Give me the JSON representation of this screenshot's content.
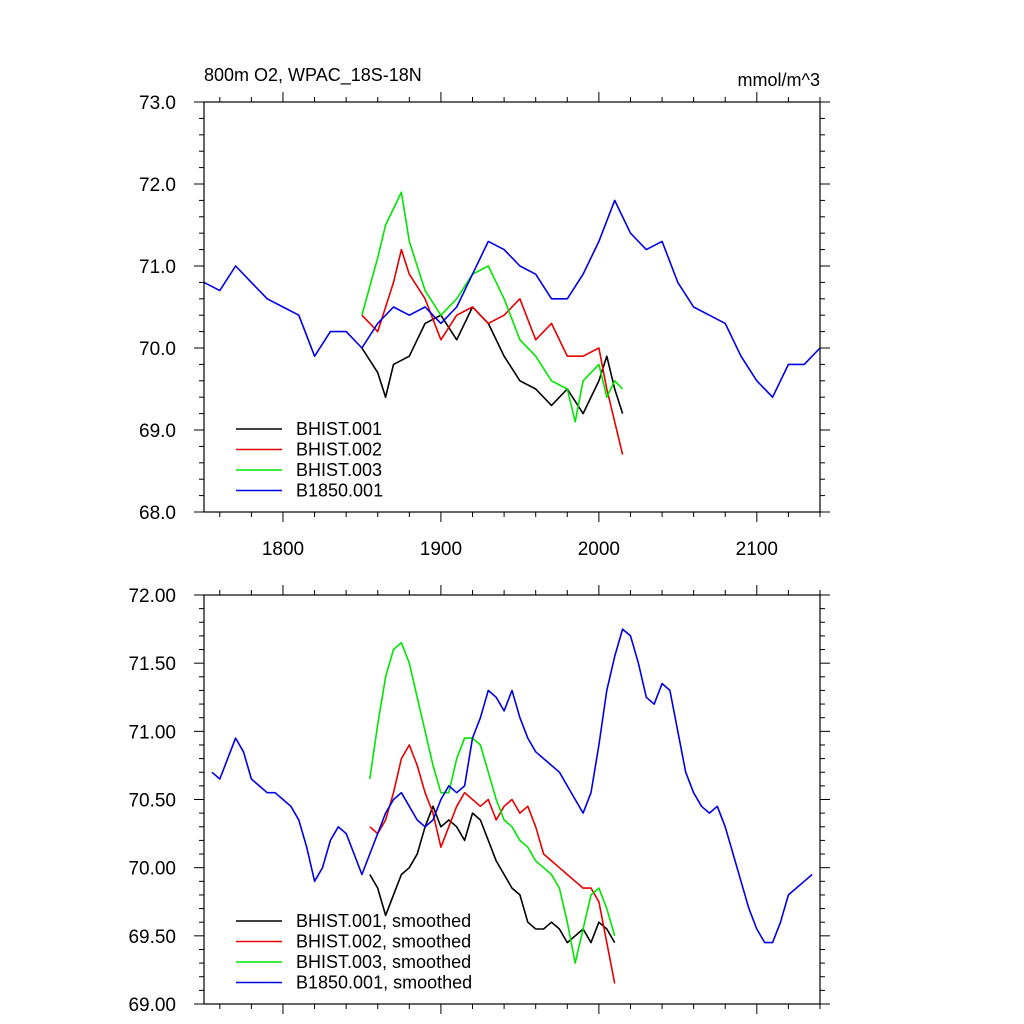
{
  "colors": {
    "BHIST.001": "#000000",
    "BHIST.002": "#e60000",
    "BHIST.003": "#00e600",
    "B1850.001": "#0000e6"
  },
  "chart_data": [
    {
      "type": "line",
      "title": "800m O2, WPAC_18S-18N",
      "units": "mmol/m^3",
      "xlim": [
        1750,
        2140
      ],
      "ylim": [
        68.0,
        73.0
      ],
      "xticks": [
        "1800",
        "1900",
        "2000",
        "2100"
      ],
      "yticks": [
        "68.0",
        "69.0",
        "70.0",
        "71.0",
        "72.0",
        "73.0"
      ],
      "legend": [
        "BHIST.001",
        "BHIST.002",
        "BHIST.003",
        "B1850.001"
      ],
      "legend_position": "bottom-left",
      "series": [
        {
          "name": "BHIST.001",
          "x": [
            1850,
            1860,
            1865,
            1870,
            1880,
            1890,
            1900,
            1910,
            1920,
            1930,
            1940,
            1950,
            1960,
            1970,
            1980,
            1990,
            2000,
            2005,
            2010,
            2015
          ],
          "values": [
            70.0,
            69.7,
            69.4,
            69.8,
            69.9,
            70.3,
            70.4,
            70.1,
            70.5,
            70.3,
            69.9,
            69.6,
            69.5,
            69.3,
            69.5,
            69.2,
            69.6,
            69.9,
            69.5,
            69.2
          ]
        },
        {
          "name": "BHIST.002",
          "x": [
            1850,
            1860,
            1870,
            1875,
            1880,
            1890,
            1900,
            1910,
            1920,
            1930,
            1940,
            1950,
            1960,
            1970,
            1980,
            1990,
            2000,
            2005,
            2010,
            2015
          ],
          "values": [
            70.4,
            70.2,
            70.8,
            71.2,
            70.9,
            70.6,
            70.1,
            70.4,
            70.5,
            70.3,
            70.4,
            70.6,
            70.1,
            70.3,
            69.9,
            69.9,
            70.0,
            69.5,
            69.1,
            68.7
          ]
        },
        {
          "name": "BHIST.003",
          "x": [
            1850,
            1860,
            1865,
            1870,
            1875,
            1880,
            1890,
            1900,
            1910,
            1920,
            1930,
            1940,
            1950,
            1960,
            1970,
            1980,
            1985,
            1990,
            2000,
            2005,
            2010,
            2015
          ],
          "values": [
            70.4,
            71.1,
            71.5,
            71.7,
            71.9,
            71.3,
            70.7,
            70.4,
            70.6,
            70.9,
            71.0,
            70.6,
            70.1,
            69.9,
            69.6,
            69.5,
            69.1,
            69.6,
            69.8,
            69.4,
            69.6,
            69.5
          ]
        },
        {
          "name": "B1850.001",
          "x": [
            1750,
            1760,
            1770,
            1780,
            1790,
            1800,
            1810,
            1820,
            1830,
            1840,
            1850,
            1860,
            1870,
            1880,
            1890,
            1900,
            1910,
            1920,
            1930,
            1940,
            1950,
            1960,
            1970,
            1980,
            1990,
            2000,
            2010,
            2020,
            2030,
            2040,
            2050,
            2060,
            2070,
            2080,
            2090,
            2100,
            2110,
            2120,
            2130,
            2140
          ],
          "values": [
            70.8,
            70.7,
            71.0,
            70.8,
            70.6,
            70.5,
            70.4,
            69.9,
            70.2,
            70.2,
            70.0,
            70.3,
            70.5,
            70.4,
            70.5,
            70.3,
            70.5,
            70.9,
            71.3,
            71.2,
            71.0,
            70.9,
            70.6,
            70.6,
            70.9,
            71.3,
            71.8,
            71.4,
            71.2,
            71.3,
            70.8,
            70.5,
            70.4,
            70.3,
            69.9,
            69.6,
            69.4,
            69.8,
            69.8,
            70.0
          ]
        }
      ]
    },
    {
      "type": "line",
      "title": "",
      "xlim": [
        1750,
        2140
      ],
      "ylim": [
        69.0,
        72.0
      ],
      "yticks": [
        "69.00",
        "69.50",
        "70.00",
        "70.50",
        "71.00",
        "71.50",
        "72.00"
      ],
      "legend": [
        "BHIST.001, smoothed",
        "BHIST.002, smoothed",
        "BHIST.003, smoothed",
        "B1850.001, smoothed"
      ],
      "legend_position": "bottom-left",
      "series": [
        {
          "name": "BHIST.001",
          "x": [
            1855,
            1860,
            1865,
            1870,
            1875,
            1880,
            1885,
            1890,
            1895,
            1900,
            1905,
            1910,
            1915,
            1920,
            1925,
            1930,
            1935,
            1940,
            1945,
            1950,
            1955,
            1960,
            1965,
            1970,
            1975,
            1980,
            1985,
            1990,
            1995,
            2000,
            2005,
            2010
          ],
          "values": [
            69.95,
            69.85,
            69.65,
            69.8,
            69.95,
            70.0,
            70.1,
            70.3,
            70.45,
            70.3,
            70.35,
            70.3,
            70.2,
            70.4,
            70.35,
            70.2,
            70.05,
            69.95,
            69.85,
            69.8,
            69.6,
            69.55,
            69.55,
            69.6,
            69.55,
            69.45,
            69.5,
            69.55,
            69.45,
            69.6,
            69.55,
            69.45
          ]
        },
        {
          "name": "BHIST.002",
          "x": [
            1855,
            1860,
            1865,
            1870,
            1875,
            1880,
            1885,
            1890,
            1895,
            1900,
            1905,
            1910,
            1915,
            1920,
            1925,
            1930,
            1935,
            1940,
            1945,
            1950,
            1955,
            1960,
            1965,
            1970,
            1975,
            1980,
            1985,
            1990,
            1995,
            2000,
            2005,
            2010
          ],
          "values": [
            70.3,
            70.25,
            70.35,
            70.55,
            70.8,
            70.9,
            70.75,
            70.55,
            70.4,
            70.15,
            70.3,
            70.45,
            70.55,
            70.5,
            70.45,
            70.5,
            70.35,
            70.45,
            70.5,
            70.4,
            70.45,
            70.3,
            70.1,
            70.05,
            70.0,
            69.95,
            69.9,
            69.85,
            69.85,
            69.75,
            69.45,
            69.15
          ]
        },
        {
          "name": "BHIST.003",
          "x": [
            1855,
            1860,
            1865,
            1870,
            1875,
            1880,
            1885,
            1890,
            1895,
            1900,
            1905,
            1910,
            1915,
            1920,
            1925,
            1930,
            1935,
            1940,
            1945,
            1950,
            1955,
            1960,
            1965,
            1970,
            1975,
            1980,
            1985,
            1990,
            1995,
            2000,
            2005,
            2010
          ],
          "values": [
            70.65,
            71.05,
            71.4,
            71.6,
            71.65,
            71.5,
            71.25,
            71.0,
            70.75,
            70.55,
            70.55,
            70.8,
            70.95,
            70.95,
            70.9,
            70.7,
            70.5,
            70.35,
            70.3,
            70.2,
            70.15,
            70.05,
            70.0,
            69.95,
            69.85,
            69.6,
            69.3,
            69.55,
            69.8,
            69.85,
            69.7,
            69.5
          ]
        },
        {
          "name": "B1850.001",
          "x": [
            1755,
            1760,
            1765,
            1770,
            1775,
            1780,
            1785,
            1790,
            1795,
            1800,
            1805,
            1810,
            1815,
            1820,
            1825,
            1830,
            1835,
            1840,
            1845,
            1850,
            1855,
            1860,
            1865,
            1870,
            1875,
            1880,
            1885,
            1890,
            1895,
            1900,
            1905,
            1910,
            1915,
            1920,
            1925,
            1930,
            1935,
            1940,
            1945,
            1950,
            1955,
            1960,
            1965,
            1970,
            1975,
            1980,
            1985,
            1990,
            1995,
            2000,
            2005,
            2010,
            2015,
            2020,
            2025,
            2030,
            2035,
            2040,
            2045,
            2050,
            2055,
            2060,
            2065,
            2070,
            2075,
            2080,
            2085,
            2090,
            2095,
            2100,
            2105,
            2110,
            2115,
            2120,
            2125,
            2130,
            2135
          ],
          "values": [
            70.7,
            70.65,
            70.8,
            70.95,
            70.85,
            70.65,
            70.6,
            70.55,
            70.55,
            70.5,
            70.45,
            70.35,
            70.15,
            69.9,
            70.0,
            70.2,
            70.3,
            70.25,
            70.1,
            69.95,
            70.1,
            70.25,
            70.4,
            70.5,
            70.55,
            70.45,
            70.35,
            70.3,
            70.35,
            70.5,
            70.6,
            70.55,
            70.6,
            70.95,
            71.1,
            71.3,
            71.25,
            71.15,
            71.3,
            71.1,
            70.95,
            70.85,
            70.8,
            70.75,
            70.7,
            70.6,
            70.5,
            70.4,
            70.55,
            70.9,
            71.3,
            71.55,
            71.75,
            71.7,
            71.5,
            71.25,
            71.2,
            71.35,
            71.3,
            71.0,
            70.7,
            70.55,
            70.45,
            70.4,
            70.45,
            70.3,
            70.1,
            69.9,
            69.7,
            69.55,
            69.45,
            69.45,
            69.6,
            69.8,
            69.85,
            69.9,
            69.95
          ]
        }
      ]
    }
  ]
}
